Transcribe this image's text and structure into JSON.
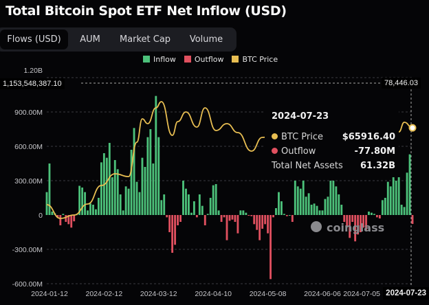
{
  "title": "Total Bitcoin Spot ETF Net Inflow (USD)",
  "tabs": [
    {
      "label": "Flows (USD)",
      "active": true
    },
    {
      "label": "AUM",
      "active": false
    },
    {
      "label": "Market Cap",
      "active": false
    },
    {
      "label": "Volume",
      "active": false
    }
  ],
  "colors": {
    "inflow": "#4cc17a",
    "outflow": "#e0505f",
    "btc_price": "#e8be52",
    "grid": "#3a3b40"
  },
  "crosshair": {
    "left_value": "1,153,548,387.10",
    "right_value": "78,446.03",
    "date": "2024-07-23"
  },
  "tooltip": {
    "date": "2024-07-23",
    "rows": [
      {
        "label": "BTC Price",
        "value": "$65916.40"
      },
      {
        "label": "Outflow",
        "value": "-77.80M"
      },
      {
        "label": "Total Net Assets",
        "value": "61.32B"
      }
    ]
  },
  "watermark": "coinglass",
  "chart_data": {
    "type": "bar",
    "title": "Total Bitcoin Spot ETF Net Inflow (USD)",
    "legend": [
      "Inflow",
      "Outflow",
      "BTC Price"
    ],
    "legend_position": "top-center",
    "ylabel": "USD",
    "ylim": [
      -600,
      1200
    ],
    "y_unit": "M",
    "y_ticks": [
      "1.20B",
      "900.00M",
      "600.00M",
      "300.00M",
      "0",
      "-300.00M",
      "-600.00M"
    ],
    "y_tick_values": [
      1200,
      900,
      600,
      300,
      0,
      -300,
      -600
    ],
    "x_ticks": [
      "2024-01-12",
      "2024-02-12",
      "2024-03-12",
      "2024-04-10",
      "2024-05-08",
      "2024-06-06",
      "2024-07-05"
    ],
    "x_tick_index": [
      1,
      21,
      41,
      61,
      81,
      101,
      118
    ],
    "x_range": [
      "2024-01-11",
      "2024-07-23"
    ],
    "flows_musd": [
      200,
      450,
      30,
      15,
      -25,
      -90,
      10,
      -60,
      -80,
      -110,
      -55,
      5,
      255,
      240,
      200,
      40,
      100,
      90,
      50,
      150,
      460,
      540,
      500,
      630,
      330,
      480,
      400,
      180,
      40,
      250,
      230,
      570,
      760,
      290,
      200,
      500,
      420,
      680,
      750,
      450,
      1040,
      680,
      130,
      180,
      -20,
      -150,
      -330,
      -260,
      -90,
      -60,
      300,
      230,
      180,
      20,
      120,
      -20,
      180,
      80,
      -90,
      10,
      150,
      260,
      270,
      40,
      -60,
      -20,
      -220,
      -50,
      -40,
      -60,
      -160,
      40,
      40,
      20,
      -5,
      -10,
      -80,
      -130,
      -220,
      -120,
      -80,
      -160,
      -560,
      -20,
      60,
      200,
      120,
      10,
      -10,
      0,
      -60,
      300,
      250,
      230,
      300,
      160,
      190,
      90,
      100,
      80,
      40,
      40,
      140,
      160,
      300,
      300,
      250,
      180,
      90,
      -60,
      -100,
      -200,
      -60,
      -230,
      -170,
      -150,
      -110,
      -130,
      30,
      20,
      10,
      -20,
      -30,
      130,
      150,
      290,
      250,
      340,
      300,
      330,
      90,
      70,
      370,
      530,
      -77.8
    ],
    "btc_price": [
      [
        0,
        44400
      ],
      [
        5,
        40540
      ],
      [
        10,
        41500
      ],
      [
        15,
        44580
      ],
      [
        20,
        49770
      ],
      [
        25,
        53050
      ],
      [
        30,
        52270
      ],
      [
        33,
        61900
      ],
      [
        35,
        68440
      ],
      [
        37,
        67090
      ],
      [
        40,
        71520
      ],
      [
        42,
        73250
      ],
      [
        46,
        63820
      ],
      [
        48,
        67670
      ],
      [
        51,
        70360
      ],
      [
        55,
        66130
      ],
      [
        58,
        71520
      ],
      [
        62,
        65170
      ],
      [
        66,
        67090
      ],
      [
        70,
        64590
      ],
      [
        75,
        59400
      ],
      [
        79,
        63240
      ],
      [
        84,
        64000
      ],
      [
        90,
        66500
      ],
      [
        96,
        69500
      ],
      [
        100,
        68000
      ],
      [
        106,
        66500
      ],
      [
        111,
        64500
      ],
      [
        116,
        60500
      ],
      [
        120,
        58000
      ],
      [
        125,
        62000
      ],
      [
        129,
        64780
      ],
      [
        131,
        67480
      ],
      [
        134,
        65916.4
      ]
    ],
    "btc_price_max": 78446.03
  }
}
